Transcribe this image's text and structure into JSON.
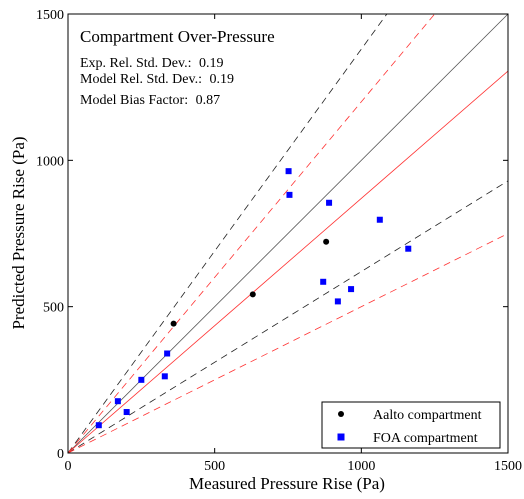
{
  "chart_data": {
    "type": "scatter",
    "title": "Compartment Over-Pressure",
    "stats": [
      {
        "label": "Exp. Rel. Std. Dev.:",
        "value": "0.19"
      },
      {
        "label": "Model Rel. Std. Dev.:",
        "value": "0.19"
      },
      {
        "label": "Model Bias Factor:",
        "value": "0.87"
      }
    ],
    "xlabel": "Measured Pressure Rise (Pa)",
    "ylabel": "Predicted Pressure Rise (Pa)",
    "xlim": [
      0,
      1500
    ],
    "ylim": [
      0,
      1500
    ],
    "xticks": [
      "0",
      "500",
      "1000",
      "1500"
    ],
    "yticks": [
      "0",
      "500",
      "1000",
      "1500"
    ],
    "grid": false,
    "legend_position": "bottom-right",
    "reference_lines": [
      {
        "slope": 1.0,
        "color": "#555555",
        "dash": "solid"
      },
      {
        "slope": 1.38,
        "color": "#222222",
        "dash": "dashed"
      },
      {
        "slope": 0.62,
        "color": "#222222",
        "dash": "dashed"
      },
      {
        "slope": 0.87,
        "color": "#ff3333",
        "dash": "solid"
      },
      {
        "slope": 1.2,
        "color": "#ff3333",
        "dash": "dashed"
      },
      {
        "slope": 0.5,
        "color": "#ff3333",
        "dash": "dashed"
      }
    ],
    "series": [
      {
        "name": "Aalto compartment",
        "marker": "circle",
        "color": "#000000",
        "x": [
          360,
          630,
          880
        ],
        "y": [
          442,
          542,
          722
        ]
      },
      {
        "name": "FOA compartment",
        "marker": "square",
        "color": "#0000ff",
        "x": [
          105,
          170,
          200,
          250,
          330,
          338,
          752,
          755,
          890,
          870,
          920,
          965,
          1063,
          1160
        ],
        "y": [
          95,
          177,
          140,
          250,
          262,
          340,
          963,
          882,
          855,
          585,
          518,
          560,
          797,
          698
        ]
      }
    ]
  }
}
